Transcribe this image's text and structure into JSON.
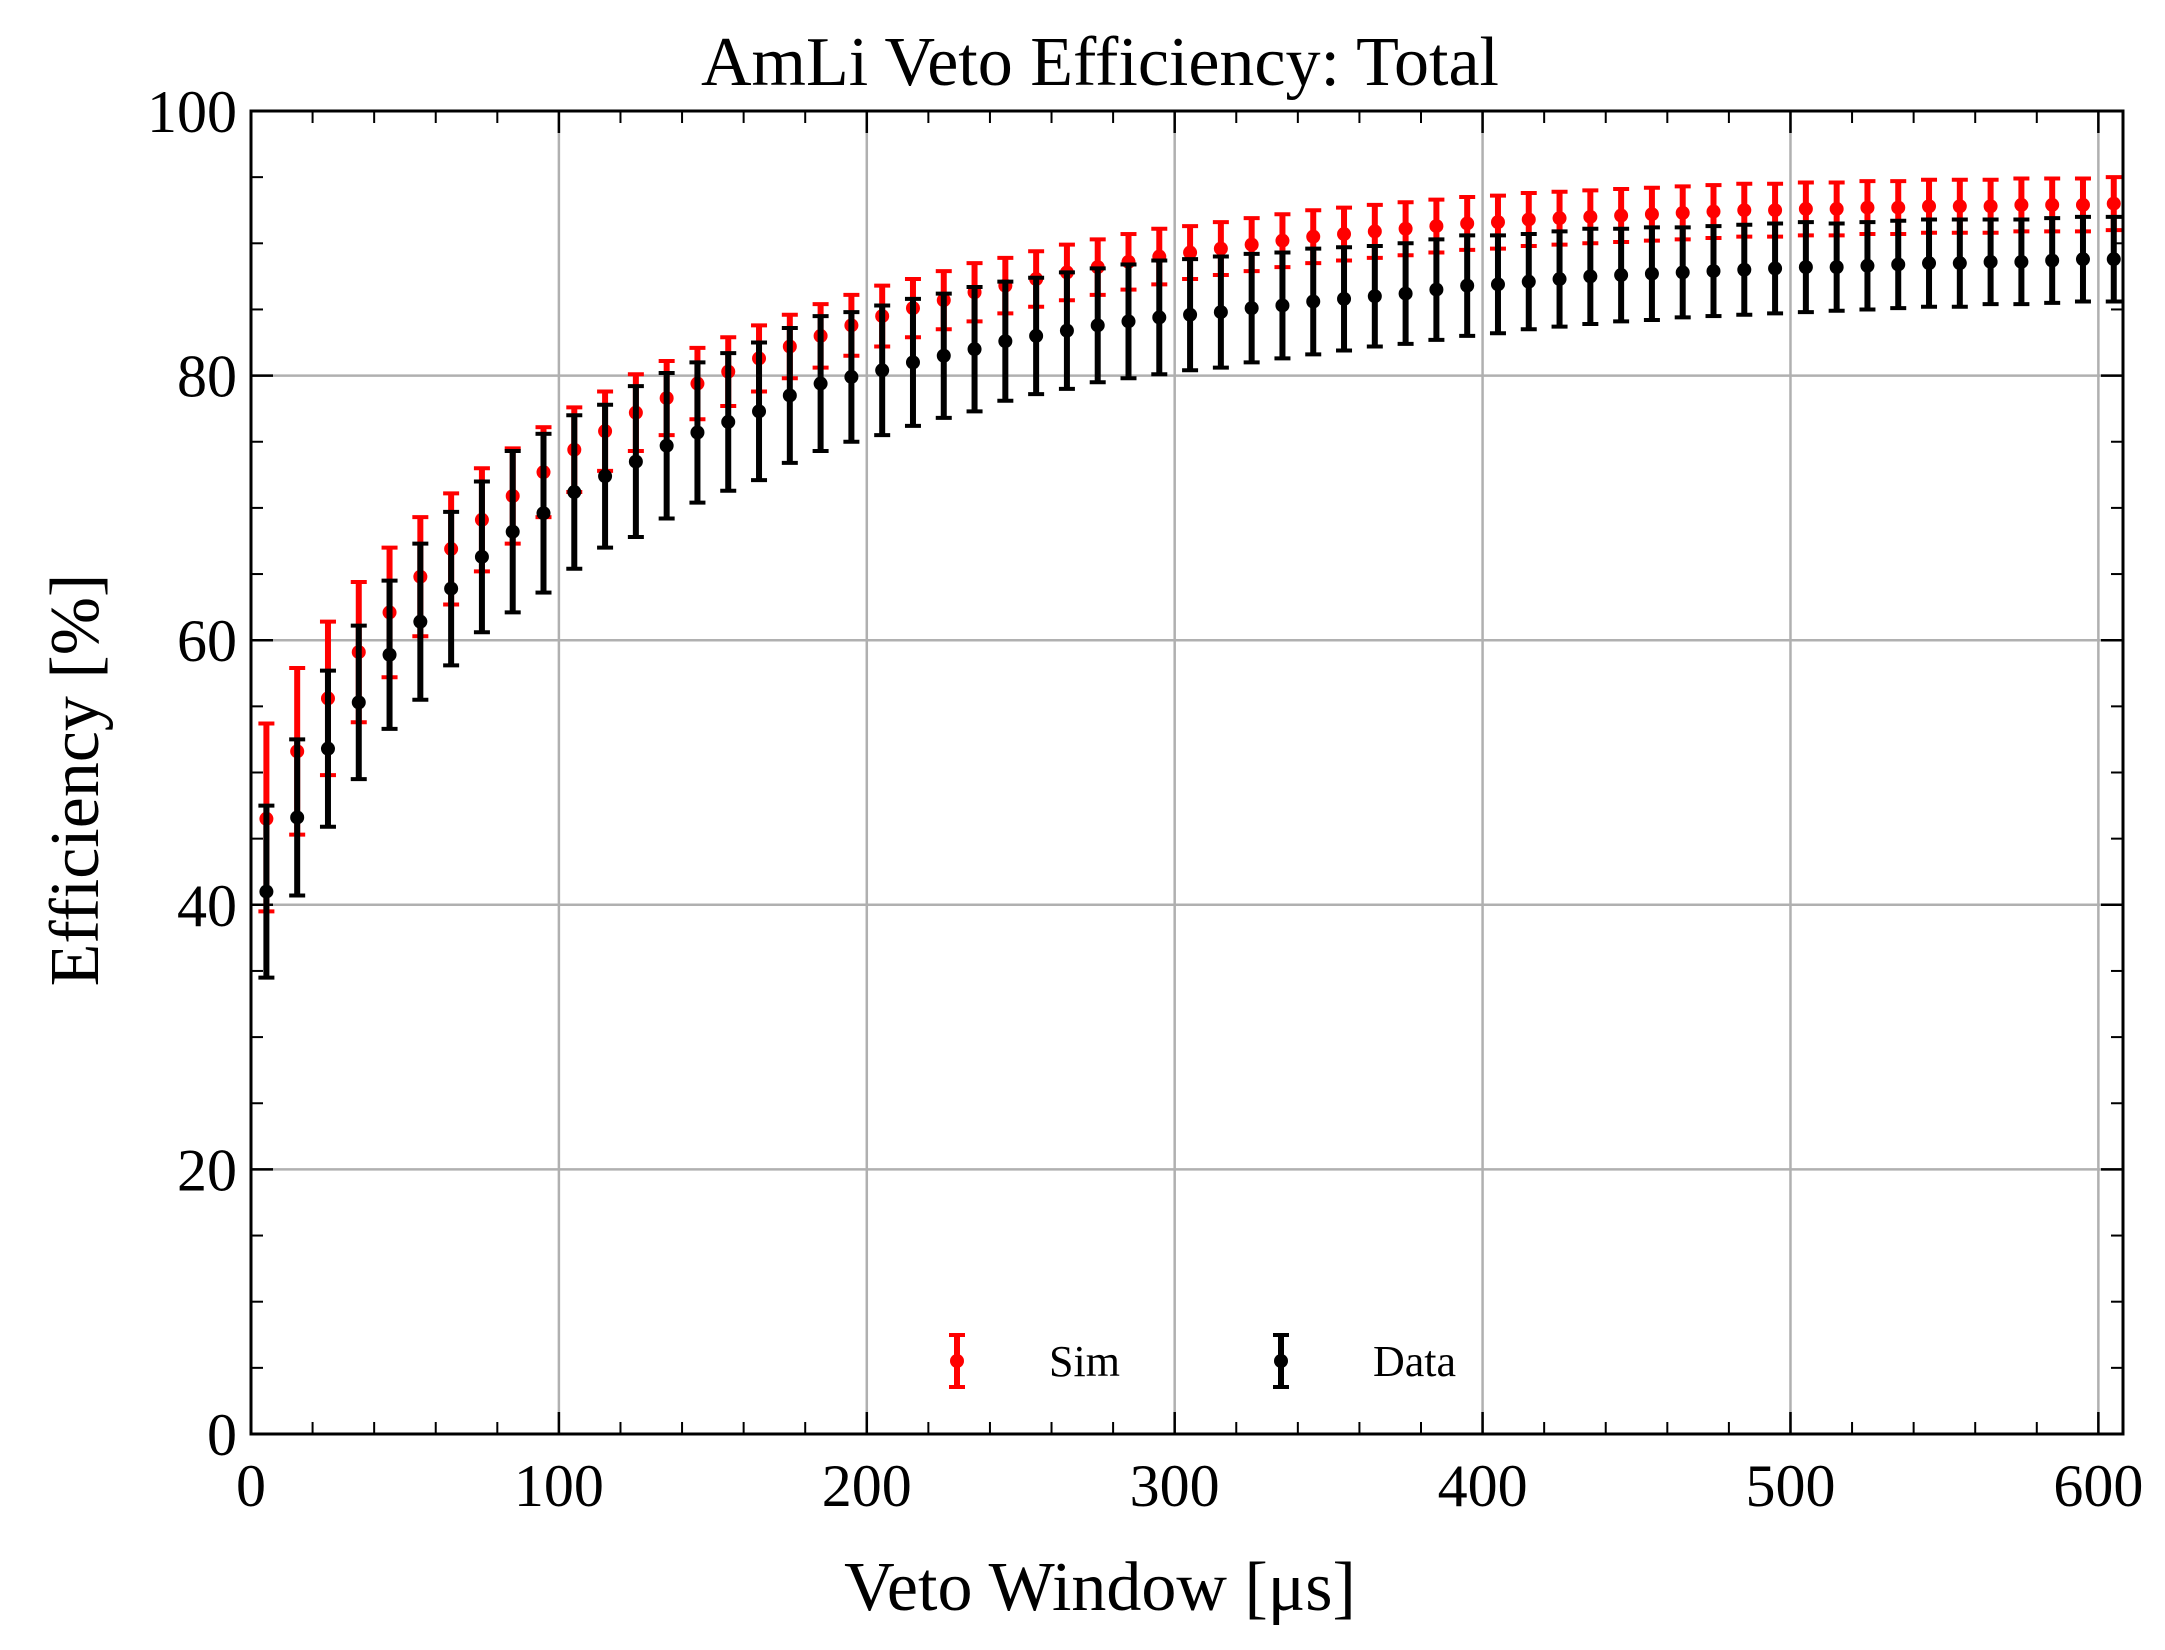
{
  "chart_data": {
    "type": "scatter",
    "title": "AmLi Veto Efficiency: Total",
    "xlabel": "Veto Window [μs]",
    "ylabel": "Efficiency [%]",
    "xlim": [
      0,
      608
    ],
    "ylim": [
      0,
      100
    ],
    "xticks": [
      0,
      100,
      200,
      300,
      400,
      500,
      600
    ],
    "yticks": [
      0,
      20,
      40,
      60,
      80,
      100
    ],
    "x_minor_step": 20,
    "y_minor_step": 5,
    "grid": true,
    "legend": {
      "placement": "bottom-center",
      "ncol": 2
    },
    "x": [
      5,
      15,
      25,
      35,
      45,
      55,
      65,
      75,
      85,
      95,
      105,
      115,
      125,
      135,
      145,
      155,
      165,
      175,
      185,
      195,
      205,
      215,
      225,
      235,
      245,
      255,
      265,
      275,
      285,
      295,
      305,
      315,
      325,
      335,
      345,
      355,
      365,
      375,
      385,
      395,
      405,
      415,
      425,
      435,
      445,
      455,
      465,
      475,
      485,
      495,
      505,
      515,
      525,
      535,
      545,
      555,
      565,
      575,
      585,
      595,
      605
    ],
    "series": [
      {
        "name": "Sim",
        "color": "#ff0000",
        "values": [
          46.5,
          51.6,
          55.6,
          59.1,
          62.1,
          64.8,
          66.9,
          69.1,
          70.9,
          72.7,
          74.4,
          75.8,
          77.2,
          78.3,
          79.4,
          80.3,
          81.3,
          82.2,
          83.0,
          83.8,
          84.5,
          85.1,
          85.7,
          86.3,
          86.8,
          87.3,
          87.8,
          88.2,
          88.6,
          89.0,
          89.3,
          89.6,
          89.9,
          90.2,
          90.5,
          90.7,
          90.9,
          91.1,
          91.3,
          91.5,
          91.6,
          91.8,
          91.9,
          92.0,
          92.1,
          92.2,
          92.3,
          92.4,
          92.5,
          92.5,
          92.6,
          92.6,
          92.7,
          92.7,
          92.8,
          92.8,
          92.8,
          92.9,
          92.9,
          92.9,
          93.0
        ],
        "err_low": [
          7.0,
          6.3,
          5.8,
          5.3,
          4.9,
          4.5,
          4.2,
          3.9,
          3.6,
          3.4,
          3.2,
          3.0,
          2.9,
          2.8,
          2.7,
          2.6,
          2.5,
          2.4,
          2.4,
          2.3,
          2.3,
          2.2,
          2.2,
          2.2,
          2.1,
          2.1,
          2.1,
          2.1,
          2.1,
          2.1,
          2.0,
          2.0,
          2.0,
          2.0,
          2.0,
          2.0,
          2.0,
          2.0,
          2.0,
          2.0,
          2.0,
          2.0,
          2.0,
          2.0,
          2.0,
          2.0,
          2.0,
          2.0,
          2.0,
          2.0,
          2.0,
          2.0,
          2.0,
          2.0,
          2.0,
          2.0,
          2.0,
          2.0,
          2.0,
          2.0,
          2.0
        ],
        "err_high": [
          7.2,
          6.3,
          5.8,
          5.3,
          4.9,
          4.5,
          4.2,
          3.9,
          3.6,
          3.4,
          3.2,
          3.0,
          2.9,
          2.8,
          2.7,
          2.6,
          2.5,
          2.4,
          2.4,
          2.3,
          2.3,
          2.2,
          2.2,
          2.2,
          2.1,
          2.1,
          2.1,
          2.1,
          2.1,
          2.1,
          2.0,
          2.0,
          2.0,
          2.0,
          2.0,
          2.0,
          2.0,
          2.0,
          2.0,
          2.0,
          2.0,
          2.0,
          2.0,
          2.0,
          2.0,
          2.0,
          2.0,
          2.0,
          2.0,
          2.0,
          2.0,
          2.0,
          2.0,
          2.0,
          2.0,
          2.0,
          2.0,
          2.0,
          2.0,
          2.0,
          2.0
        ]
      },
      {
        "name": "Data",
        "color": "#000000",
        "values": [
          41.0,
          46.6,
          51.8,
          55.3,
          58.9,
          61.4,
          63.9,
          66.3,
          68.2,
          69.6,
          71.2,
          72.4,
          73.5,
          74.7,
          75.7,
          76.5,
          77.3,
          78.5,
          79.4,
          79.9,
          80.4,
          81.0,
          81.5,
          82.0,
          82.6,
          83.0,
          83.4,
          83.8,
          84.1,
          84.4,
          84.6,
          84.8,
          85.1,
          85.3,
          85.6,
          85.8,
          86.0,
          86.2,
          86.5,
          86.8,
          86.9,
          87.1,
          87.3,
          87.5,
          87.6,
          87.7,
          87.8,
          87.9,
          88.0,
          88.1,
          88.2,
          88.2,
          88.3,
          88.4,
          88.5,
          88.5,
          88.6,
          88.6,
          88.7,
          88.8,
          88.8
        ],
        "err_low": [
          6.5,
          5.9,
          5.9,
          5.8,
          5.6,
          5.9,
          5.8,
          5.7,
          6.1,
          6.0,
          5.8,
          5.4,
          5.7,
          5.5,
          5.3,
          5.2,
          5.2,
          5.1,
          5.1,
          4.9,
          4.9,
          4.8,
          4.7,
          4.7,
          4.5,
          4.4,
          4.4,
          4.3,
          4.3,
          4.3,
          4.2,
          4.2,
          4.1,
          4.0,
          4.0,
          3.9,
          3.8,
          3.8,
          3.8,
          3.8,
          3.7,
          3.6,
          3.6,
          3.6,
          3.5,
          3.5,
          3.4,
          3.4,
          3.4,
          3.4,
          3.4,
          3.3,
          3.3,
          3.3,
          3.3,
          3.3,
          3.2,
          3.2,
          3.2,
          3.2,
          3.2
        ],
        "err_high": [
          6.5,
          5.9,
          5.9,
          5.8,
          5.6,
          5.9,
          5.8,
          5.7,
          6.1,
          6.0,
          5.8,
          5.4,
          5.7,
          5.5,
          5.3,
          5.2,
          5.2,
          5.1,
          5.1,
          4.9,
          4.9,
          4.8,
          4.7,
          4.7,
          4.5,
          4.4,
          4.4,
          4.3,
          4.3,
          4.3,
          4.2,
          4.2,
          4.1,
          4.0,
          4.0,
          3.9,
          3.8,
          3.8,
          3.8,
          3.8,
          3.7,
          3.6,
          3.6,
          3.6,
          3.5,
          3.5,
          3.4,
          3.4,
          3.4,
          3.4,
          3.4,
          3.3,
          3.3,
          3.3,
          3.3,
          3.3,
          3.2,
          3.2,
          3.2,
          3.2,
          3.2
        ]
      }
    ]
  }
}
